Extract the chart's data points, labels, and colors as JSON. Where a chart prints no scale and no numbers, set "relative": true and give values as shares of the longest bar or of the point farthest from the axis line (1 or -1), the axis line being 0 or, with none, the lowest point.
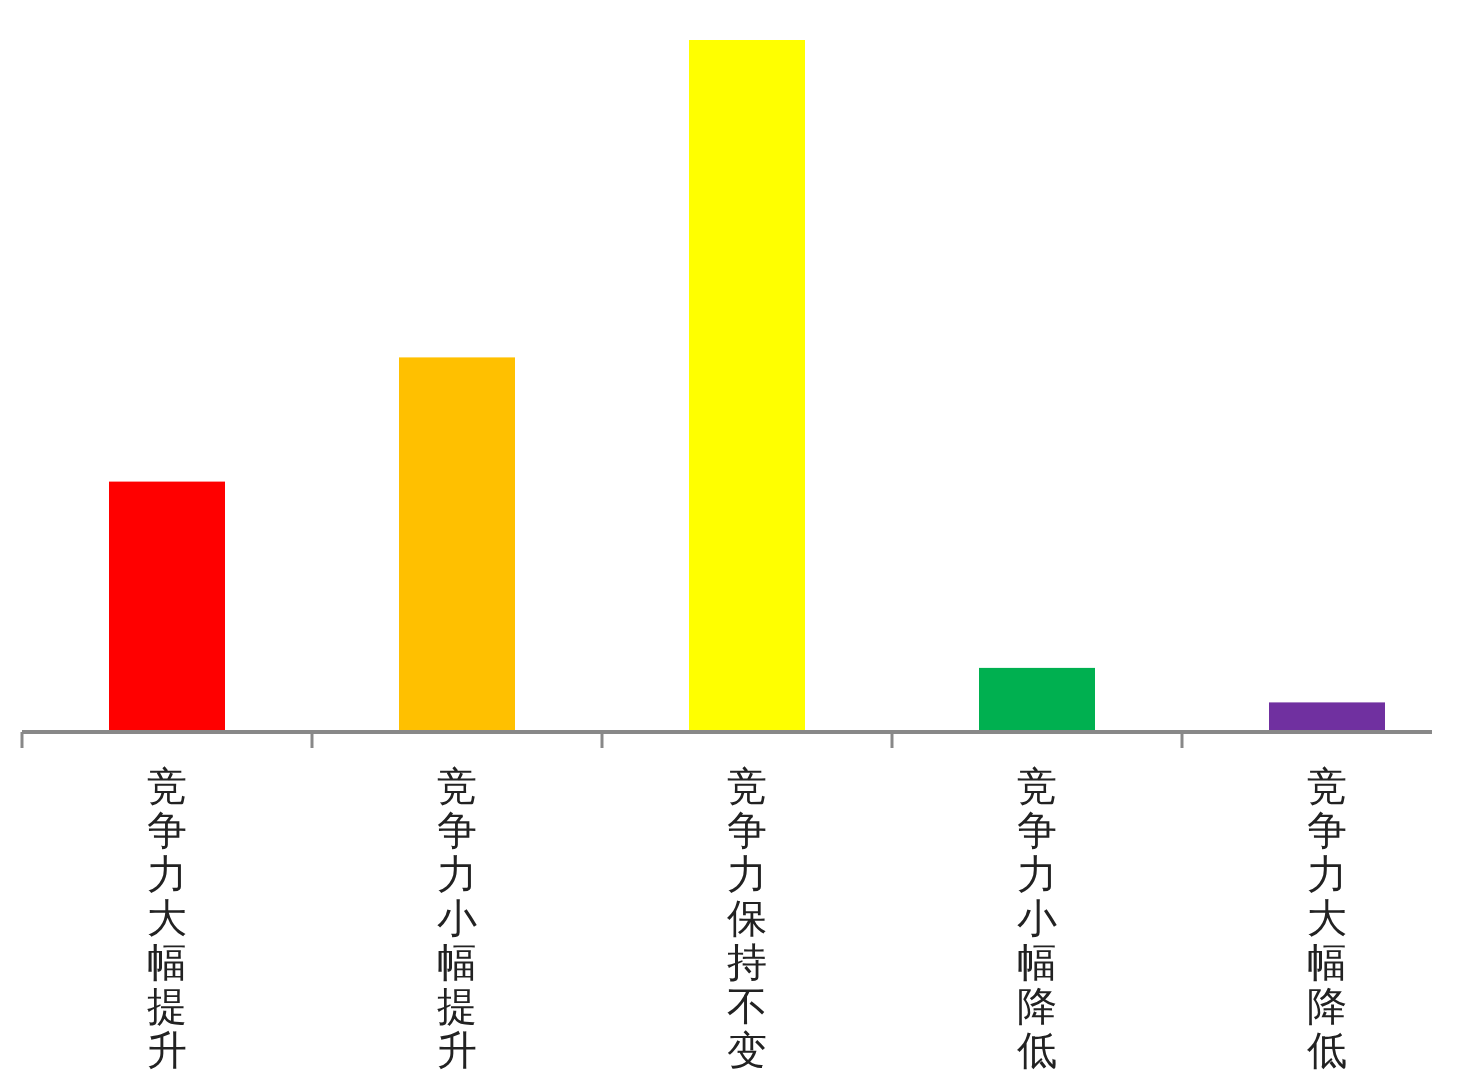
{
  "chart_data": {
    "type": "bar",
    "relative": true,
    "categories": [
      "竞争力大幅提升",
      "竞争力小幅提升",
      "竞争力保持不变",
      "竞争力小幅降低",
      "竞争力大幅降低"
    ],
    "values": [
      0.36,
      0.54,
      1,
      0.09,
      0.04
    ],
    "colors": [
      "#ff0000",
      "#ffc000",
      "#ffff00",
      "#00b050",
      "#7030a0"
    ]
  }
}
